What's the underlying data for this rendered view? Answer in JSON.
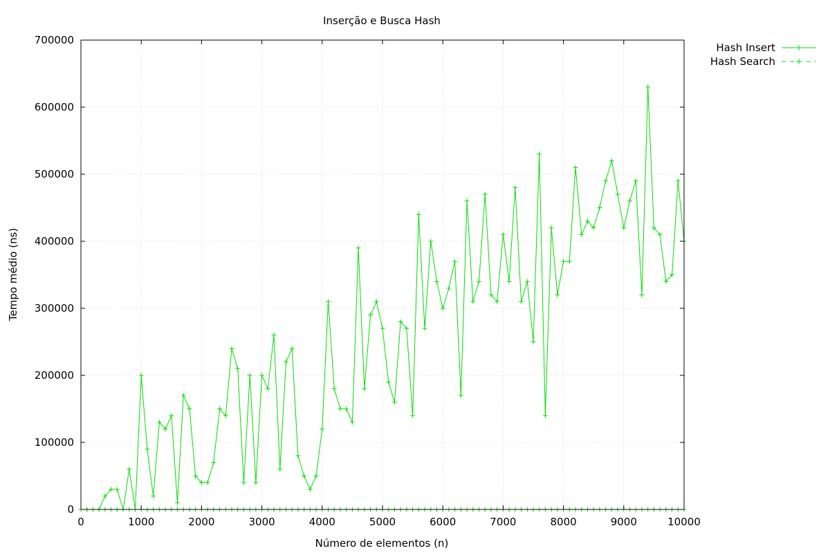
{
  "chart_data": {
    "type": "line",
    "title": "Inserção e Busca Hash",
    "xlabel": "Número de elementos (n)",
    "ylabel": "Tempo médio (ns)",
    "xlim": [
      0,
      10000
    ],
    "ylim": [
      0,
      700000
    ],
    "xticks": [
      0,
      1000,
      2000,
      3000,
      4000,
      5000,
      6000,
      7000,
      8000,
      9000,
      10000
    ],
    "yticks": [
      0,
      100000,
      200000,
      300000,
      400000,
      500000,
      600000,
      700000
    ],
    "xtick_labels": [
      "0",
      "1000",
      "2000",
      "3000",
      "4000",
      "5000",
      "6000",
      "7000",
      "8000",
      "9000",
      "10000"
    ],
    "ytick_labels": [
      "0",
      "100000",
      "200000",
      "300000",
      "400000",
      "500000",
      "600000",
      "700000"
    ],
    "grid": true,
    "legend_position": "top-right, outside plot",
    "x": [
      0,
      100,
      200,
      300,
      400,
      500,
      600,
      700,
      800,
      900,
      1000,
      1100,
      1200,
      1300,
      1400,
      1500,
      1600,
      1700,
      1800,
      1900,
      2000,
      2100,
      2200,
      2300,
      2400,
      2500,
      2600,
      2700,
      2800,
      2900,
      3000,
      3100,
      3200,
      3300,
      3400,
      3500,
      3600,
      3700,
      3800,
      3900,
      4000,
      4100,
      4200,
      4300,
      4400,
      4500,
      4600,
      4700,
      4800,
      4900,
      5000,
      5100,
      5200,
      5300,
      5400,
      5500,
      5600,
      5700,
      5800,
      5900,
      6000,
      6100,
      6200,
      6300,
      6400,
      6500,
      6600,
      6700,
      6800,
      6900,
      7000,
      7100,
      7200,
      7300,
      7400,
      7500,
      7600,
      7700,
      7800,
      7900,
      8000,
      8100,
      8200,
      8300,
      8400,
      8500,
      8600,
      8700,
      8800,
      8900,
      9000,
      9100,
      9200,
      9300,
      9400,
      9500,
      9600,
      9700,
      9800,
      9900,
      10000
    ],
    "series": [
      {
        "name": "Hash Insert",
        "color": "#00dd00",
        "line": "solid",
        "values": [
          0,
          0,
          0,
          0,
          20000,
          30000,
          30000,
          0,
          60000,
          0,
          200000,
          90000,
          20000,
          130000,
          120000,
          140000,
          10000,
          170000,
          150000,
          50000,
          40000,
          40000,
          70000,
          150000,
          140000,
          240000,
          210000,
          40000,
          200000,
          40000,
          200000,
          180000,
          260000,
          60000,
          220000,
          240000,
          80000,
          50000,
          30000,
          50000,
          120000,
          310000,
          180000,
          150000,
          150000,
          130000,
          390000,
          180000,
          290000,
          310000,
          270000,
          190000,
          160000,
          280000,
          270000,
          140000,
          440000,
          270000,
          400000,
          340000,
          300000,
          330000,
          370000,
          170000,
          460000,
          310000,
          340000,
          470000,
          320000,
          310000,
          410000,
          340000,
          480000,
          310000,
          340000,
          250000,
          530000,
          140000,
          420000,
          320000,
          370000,
          370000,
          510000,
          410000,
          430000,
          420000,
          450000,
          490000,
          520000,
          470000,
          420000,
          460000,
          490000,
          320000,
          630000,
          420000,
          410000,
          340000,
          350000,
          490000,
          400000
        ]
      },
      {
        "name": "Hash Search",
        "color": "#00dd00",
        "line": "dashed",
        "values": [
          0,
          0,
          0,
          0,
          0,
          0,
          0,
          0,
          0,
          0,
          0,
          0,
          0,
          0,
          0,
          0,
          0,
          0,
          0,
          0,
          0,
          0,
          0,
          0,
          0,
          0,
          0,
          0,
          0,
          0,
          0,
          0,
          0,
          0,
          0,
          0,
          0,
          0,
          0,
          0,
          0,
          0,
          0,
          0,
          0,
          0,
          0,
          0,
          0,
          0,
          0,
          0,
          0,
          0,
          0,
          0,
          0,
          0,
          0,
          0,
          0,
          0,
          0,
          0,
          0,
          0,
          0,
          0,
          0,
          0,
          0,
          0,
          0,
          0,
          0,
          0,
          0,
          0,
          0,
          0,
          0,
          0,
          0,
          0,
          0,
          0,
          0,
          0,
          0,
          0,
          0,
          0,
          0,
          0,
          0,
          0,
          0,
          0,
          0,
          0,
          0
        ]
      }
    ]
  }
}
